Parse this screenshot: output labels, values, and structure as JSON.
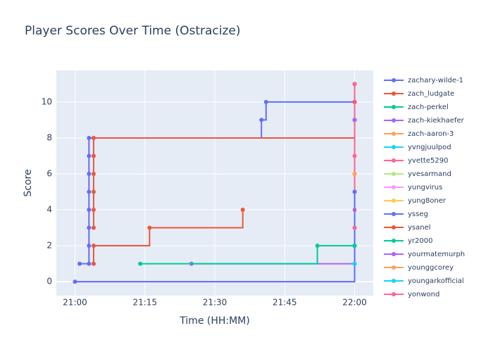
{
  "chart_data": {
    "type": "line",
    "line_shape": "hv",
    "title": "Player Scores Over Time (Ostracize)",
    "x_label": "Time (HH:MM)",
    "y_label": "Score",
    "xlim": [
      "20:56",
      "22:04"
    ],
    "xticks": [
      "21:00",
      "21:15",
      "21:30",
      "21:45",
      "22:00"
    ],
    "ylim": [
      -0.78,
      11.76
    ],
    "yticks": [
      0,
      2,
      4,
      6,
      8,
      10
    ],
    "grid": true,
    "legend": "right",
    "series": [
      {
        "name": "zachary-wilde-1",
        "color": "#636efa",
        "x": [
          "21:01",
          "21:03",
          "21:03",
          "21:03",
          "21:03",
          "21:03",
          "21:03",
          "21:03",
          "21:03",
          "21:40",
          "21:41",
          "22:00",
          "22:00"
        ],
        "values": [
          1,
          1,
          2,
          3,
          4,
          5,
          6,
          7,
          8,
          9,
          10,
          10,
          11
        ]
      },
      {
        "name": "zach_ludgate",
        "color": "#EF553B",
        "x": [
          "21:04",
          "21:04",
          "21:04",
          "21:04",
          "21:04",
          "21:04",
          "22:00",
          "22:00",
          "22:00"
        ],
        "values": [
          3,
          4,
          5,
          6,
          7,
          8,
          9,
          10,
          11
        ]
      },
      {
        "name": "zach-perkel",
        "color": "#00cc96",
        "x": [
          "22:00",
          "22:00"
        ],
        "values": [
          2,
          3
        ]
      },
      {
        "name": "zach-kiekhaefer",
        "color": "#ab63fa",
        "x": [
          "21:25",
          "22:00",
          "22:00"
        ],
        "values": [
          1,
          1,
          9
        ]
      },
      {
        "name": "zach-aaron-3",
        "color": "#FFA15A",
        "x": [
          "21:00",
          "22:00"
        ],
        "values": [
          0,
          6
        ]
      },
      {
        "name": "yvngjuulpod",
        "color": "#19d3f3",
        "x": [
          "22:00",
          "22:00"
        ],
        "values": [
          1,
          5
        ]
      },
      {
        "name": "yvette5290",
        "color": "#FF6692",
        "x": [
          "22:00",
          "22:00",
          "22:00"
        ],
        "values": [
          4,
          7,
          11
        ]
      },
      {
        "name": "yvesarmand",
        "color": "#B6E880",
        "x": [
          "21:00"
        ],
        "values": [
          0
        ]
      },
      {
        "name": "yungvirus",
        "color": "#FF97FF",
        "x": [
          "21:00"
        ],
        "values": [
          0
        ]
      },
      {
        "name": "yung8oner",
        "color": "#FECB52",
        "x": [
          "21:00"
        ],
        "values": [
          0
        ]
      },
      {
        "name": "ysseg",
        "color": "#636efa",
        "x": [
          "21:00",
          "22:00",
          "22:00"
        ],
        "values": [
          0,
          2,
          5
        ]
      },
      {
        "name": "ysanel",
        "color": "#EF553B",
        "x": [
          "21:04",
          "21:04",
          "21:16",
          "21:36"
        ],
        "values": [
          1,
          2,
          3,
          4
        ]
      },
      {
        "name": "yr2000",
        "color": "#00cc96",
        "x": [
          "21:14",
          "21:52",
          "22:00"
        ],
        "values": [
          1,
          2,
          2
        ]
      },
      {
        "name": "yourmatemurph",
        "color": "#ab63fa",
        "x": [
          "22:00"
        ],
        "values": [
          9
        ]
      },
      {
        "name": "younggcorey",
        "color": "#FFA15A",
        "x": [
          "22:00"
        ],
        "values": [
          6
        ]
      },
      {
        "name": "youngarkofficial",
        "color": "#19d3f3",
        "x": [
          "22:00"
        ],
        "values": [
          1
        ]
      },
      {
        "name": "yonwond",
        "color": "#FF6692",
        "x": [
          "22:00"
        ],
        "values": [
          3
        ]
      }
    ]
  }
}
